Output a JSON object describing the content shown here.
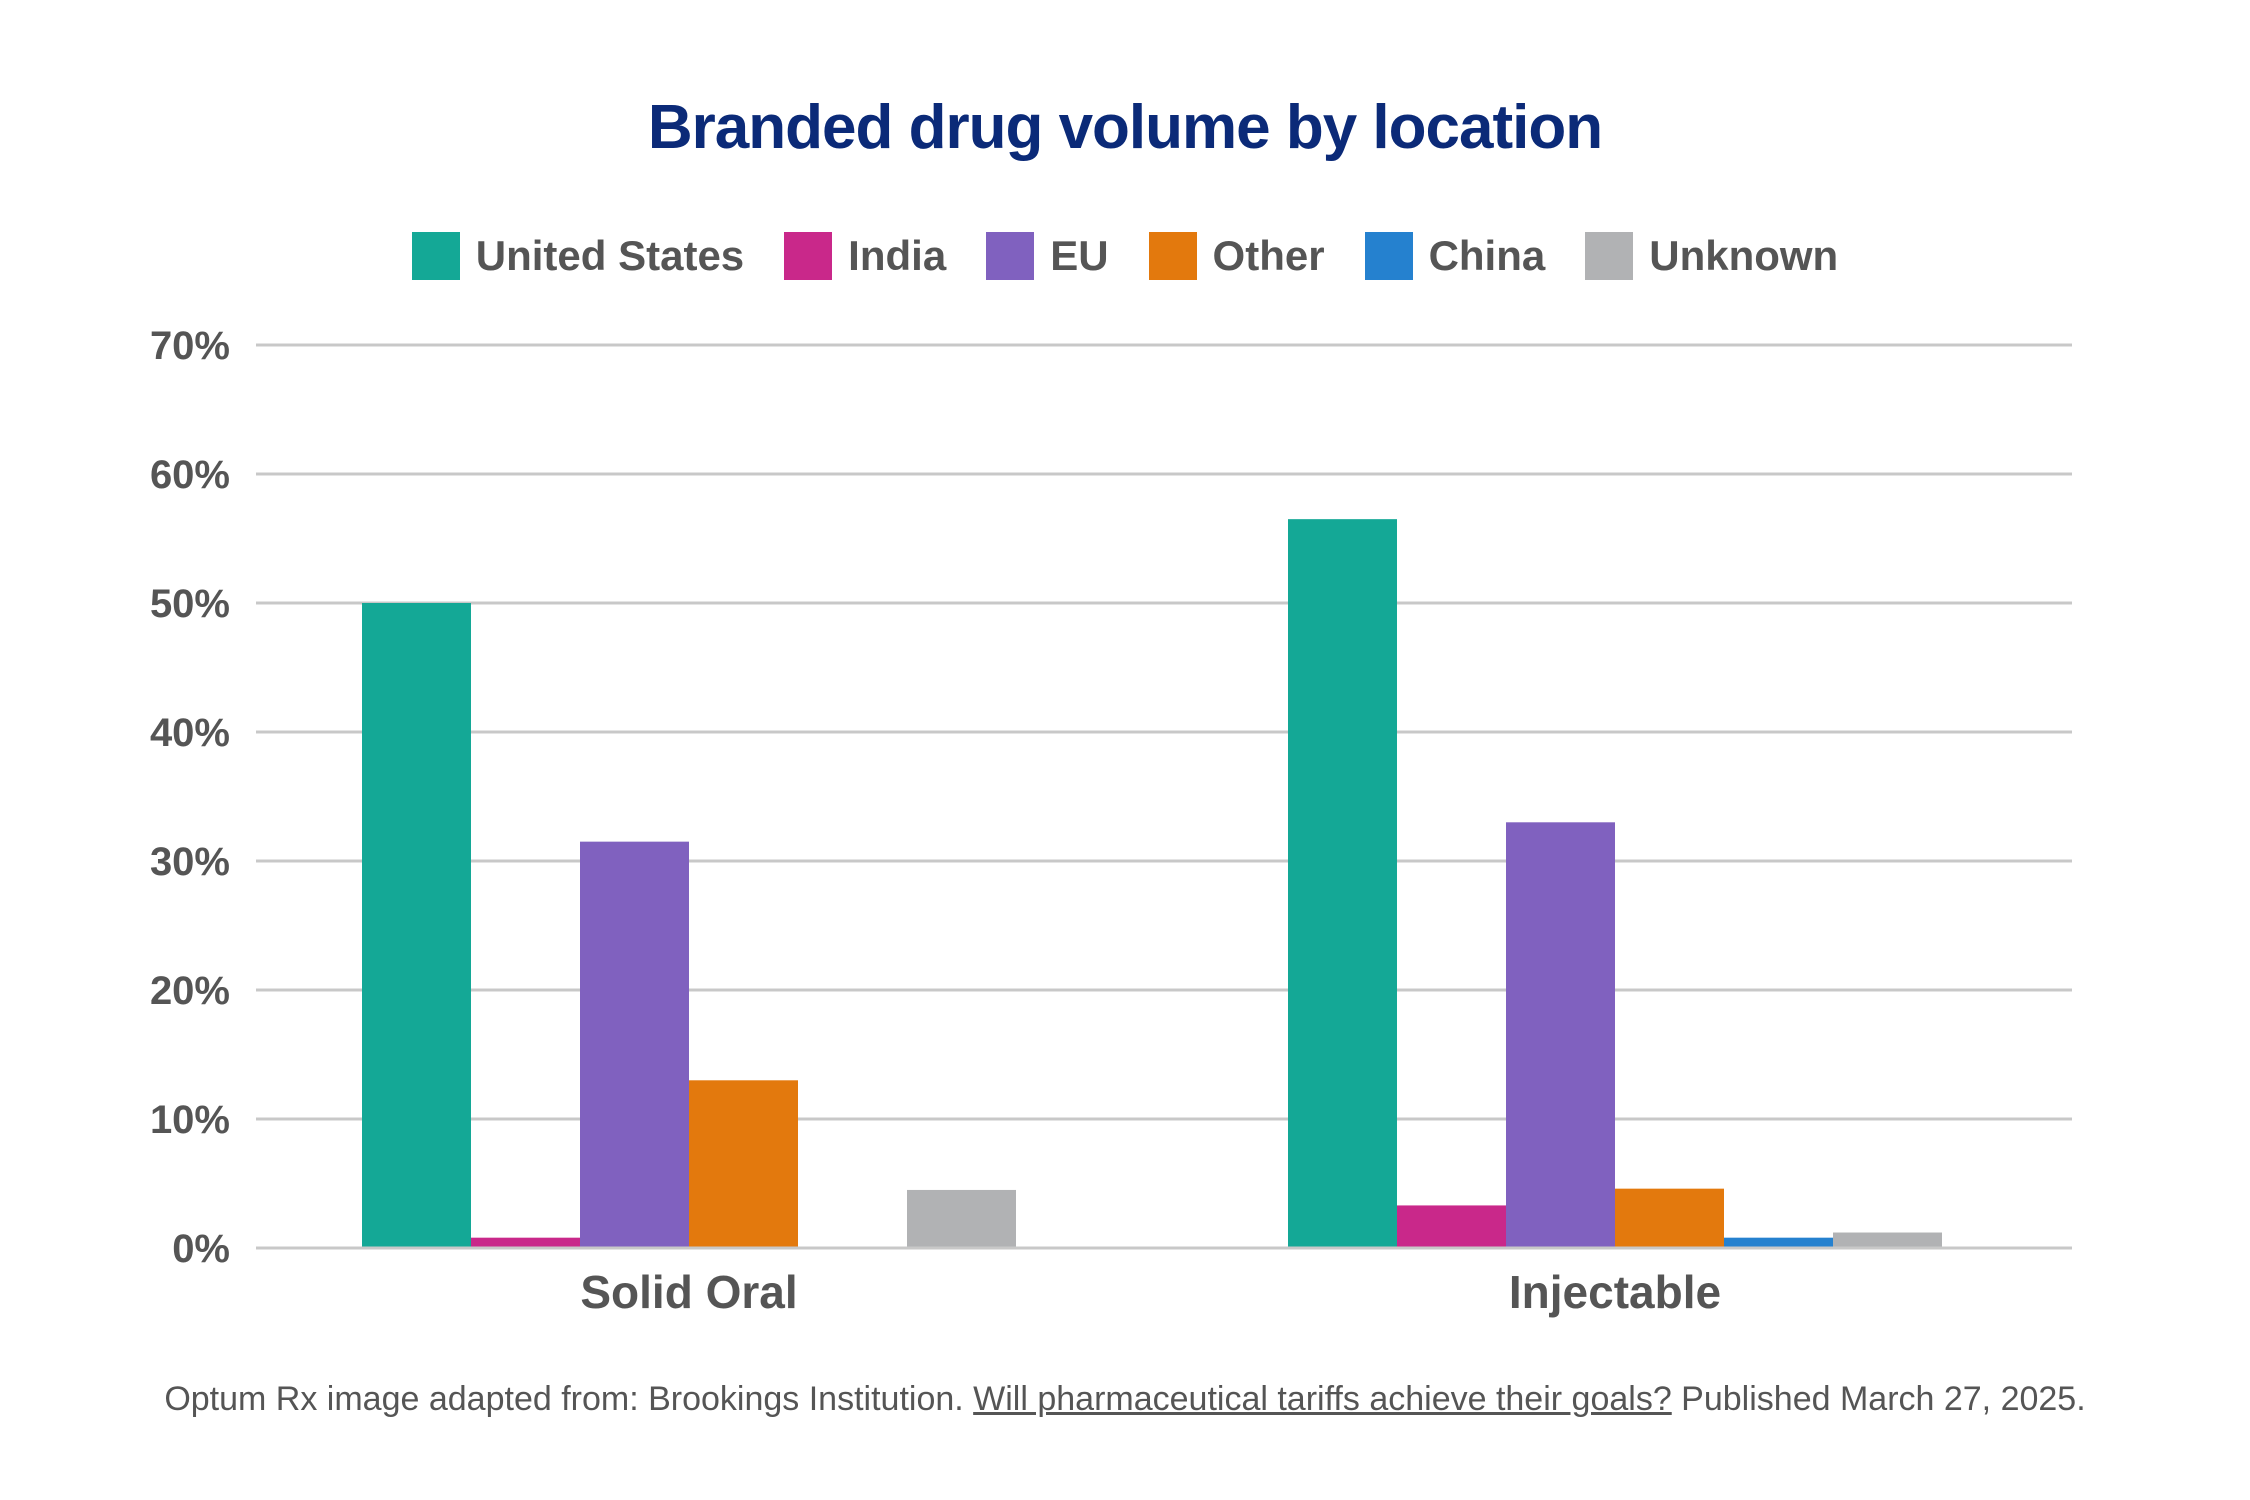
{
  "chart_data": {
    "type": "bar",
    "title": "Branded drug volume by location",
    "categories": [
      "Solid Oral",
      "Injectable"
    ],
    "series": [
      {
        "name": "United States",
        "color": "#14a896",
        "values": [
          50,
          56.5
        ]
      },
      {
        "name": "India",
        "color": "#c9288a",
        "values": [
          0.8,
          3.3
        ]
      },
      {
        "name": "EU",
        "color": "#8061bf",
        "values": [
          31.5,
          33
        ]
      },
      {
        "name": "Other",
        "color": "#e3790d",
        "values": [
          13,
          4.6
        ]
      },
      {
        "name": "China",
        "color": "#2581cf",
        "values": [
          0,
          0.8
        ]
      },
      {
        "name": "Unknown",
        "color": "#b1b2b4",
        "values": [
          4.5,
          1.2
        ]
      }
    ],
    "ylim": [
      0,
      70
    ],
    "yticks": [
      0,
      10,
      20,
      30,
      40,
      50,
      60,
      70
    ],
    "ytick_labels": [
      "0%",
      "10%",
      "20%",
      "30%",
      "40%",
      "50%",
      "60%",
      "70%"
    ],
    "xlabel": "",
    "ylabel": "",
    "grid": true,
    "legend_position": "top"
  },
  "source": {
    "prefix": "Optum Rx image adapted from: Brookings Institution. ",
    "link_text": "Will pharmaceutical tariffs achieve their goals?",
    "suffix": " Published March 27, 2025."
  },
  "colors": {
    "title": "#0b2a78",
    "axis_text": "#555555",
    "gridline": "#c8c8c8"
  }
}
